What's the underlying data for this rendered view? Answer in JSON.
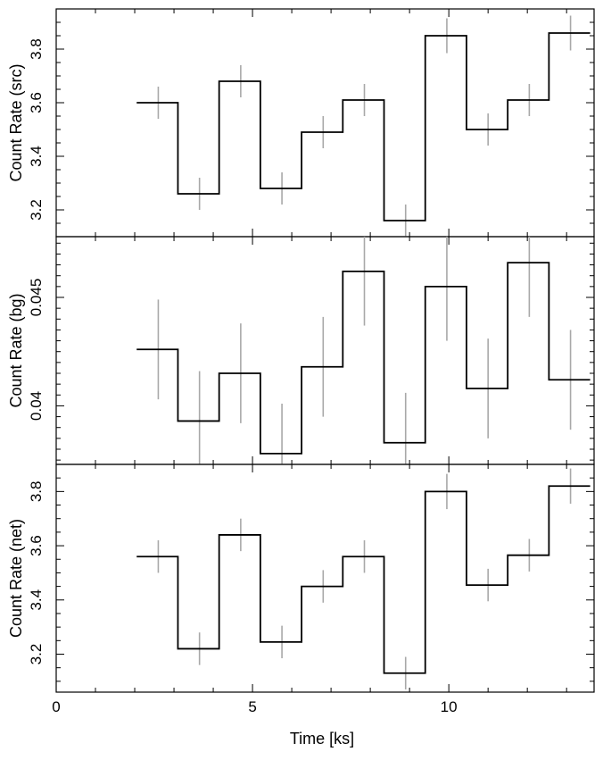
{
  "figure": {
    "xlabel": "Time [ks]",
    "xlim": [
      0,
      13.7
    ],
    "x_ticks": [
      0,
      5,
      10
    ],
    "x_tick_labels": [
      "0",
      "5",
      "10"
    ],
    "x_minor_step": 1,
    "colors": {
      "step": "#000000",
      "errorbar": "#a8a8a8",
      "frame": "#000000"
    }
  },
  "chart_data": [
    {
      "type": "line",
      "ylabel": "Count Rate (src)",
      "ylim": [
        3.1,
        3.95
      ],
      "y_ticks": [
        3.2,
        3.4,
        3.6,
        3.8
      ],
      "y_tick_labels": [
        "3.2",
        "3.4",
        "3.6",
        "3.8"
      ],
      "y_minor_step": 0.05,
      "bins": [
        2.05,
        3.1,
        4.15,
        5.2,
        6.25,
        7.3,
        8.35,
        9.4,
        10.45,
        11.5,
        12.55,
        13.6
      ],
      "x": [
        2.6,
        3.65,
        4.7,
        5.75,
        6.8,
        7.85,
        8.9,
        9.95,
        11.0,
        12.05,
        13.1
      ],
      "y": [
        3.6,
        3.26,
        3.68,
        3.28,
        3.49,
        3.61,
        3.16,
        3.85,
        3.5,
        3.61,
        3.86
      ],
      "yerr": [
        0.06,
        0.06,
        0.06,
        0.06,
        0.06,
        0.06,
        0.06,
        0.065,
        0.06,
        0.06,
        0.065
      ]
    },
    {
      "type": "line",
      "ylabel": "Count Rate (bg)",
      "ylim": [
        0.0373,
        0.0478
      ],
      "y_ticks": [
        0.04,
        0.045
      ],
      "y_tick_labels": [
        "0.04",
        "0.045"
      ],
      "y_minor_step": 0.0005,
      "bins": [
        2.05,
        3.1,
        4.15,
        5.2,
        6.25,
        7.3,
        8.35,
        9.4,
        10.45,
        11.5,
        12.55,
        13.6
      ],
      "x": [
        2.6,
        3.65,
        4.7,
        5.75,
        6.8,
        7.85,
        8.9,
        9.95,
        11.0,
        12.05,
        13.1
      ],
      "y": [
        0.0426,
        0.0393,
        0.0415,
        0.0378,
        0.0418,
        0.0462,
        0.0383,
        0.0455,
        0.0408,
        0.0466,
        0.0412
      ],
      "yerr": [
        0.0023,
        0.0023,
        0.0023,
        0.0023,
        0.0023,
        0.0025,
        0.0023,
        0.0025,
        0.0023,
        0.0025,
        0.0023
      ]
    },
    {
      "type": "line",
      "ylabel": "Count Rate (net)",
      "ylim": [
        3.06,
        3.9
      ],
      "y_ticks": [
        3.2,
        3.4,
        3.6,
        3.8
      ],
      "y_tick_labels": [
        "3.2",
        "3.4",
        "3.6",
        "3.8"
      ],
      "y_minor_step": 0.05,
      "bins": [
        2.05,
        3.1,
        4.15,
        5.2,
        6.25,
        7.3,
        8.35,
        9.4,
        10.45,
        11.5,
        12.55,
        13.6
      ],
      "x": [
        2.6,
        3.65,
        4.7,
        5.75,
        6.8,
        7.85,
        8.9,
        9.95,
        11.0,
        12.05,
        13.1
      ],
      "y": [
        3.56,
        3.22,
        3.64,
        3.245,
        3.45,
        3.56,
        3.13,
        3.8,
        3.455,
        3.565,
        3.82
      ],
      "yerr": [
        0.06,
        0.06,
        0.06,
        0.06,
        0.06,
        0.06,
        0.06,
        0.065,
        0.06,
        0.06,
        0.065
      ]
    }
  ]
}
